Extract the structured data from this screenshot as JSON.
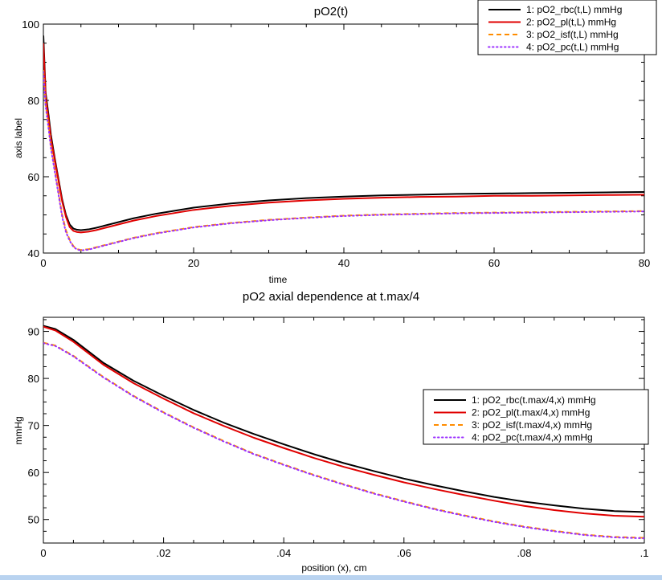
{
  "chart_data": [
    {
      "type": "line",
      "title": "pO2(t)",
      "xlabel": "time",
      "ylabel": "axis label",
      "xlim": [
        0,
        80
      ],
      "ylim": [
        40,
        100
      ],
      "xticks": [
        0,
        20,
        40,
        60,
        80
      ],
      "yticks": [
        40,
        60,
        80,
        100
      ],
      "xtick_labels": [
        "0",
        "20",
        "40",
        "60",
        "80"
      ],
      "ytick_labels": [
        "40",
        "60",
        "80",
        "100"
      ],
      "legend": "top-right",
      "grid": false,
      "series": [
        {
          "name": "1: pO2_rbc(t,L) mmHg",
          "color": "#000000",
          "dash": "solid",
          "x": [
            0,
            0.3,
            0.7,
            1,
            1.5,
            2,
            2.5,
            3,
            3.5,
            4,
            4.5,
            5,
            6,
            7,
            8,
            10,
            12,
            15,
            20,
            25,
            30,
            35,
            40,
            45,
            50,
            55,
            60,
            65,
            70,
            75,
            80
          ],
          "y": [
            97,
            82,
            76,
            71,
            65,
            59.5,
            54,
            50,
            47.5,
            46.4,
            46.1,
            46.0,
            46.2,
            46.6,
            47.1,
            48.1,
            49.1,
            50.3,
            51.9,
            53.0,
            53.8,
            54.4,
            54.8,
            55.1,
            55.3,
            55.5,
            55.6,
            55.7,
            55.8,
            55.9,
            56.0
          ]
        },
        {
          "name": "2: pO2_pl(t,L) mmHg",
          "color": "#e00000",
          "dash": "solid",
          "x": [
            0,
            0.3,
            0.7,
            1,
            1.5,
            2,
            2.5,
            3,
            3.5,
            4,
            4.5,
            5,
            6,
            7,
            8,
            10,
            12,
            15,
            20,
            25,
            30,
            35,
            40,
            45,
            50,
            55,
            60,
            65,
            70,
            75,
            80
          ],
          "y": [
            95,
            81,
            75,
            70,
            64.5,
            59,
            53.5,
            49.5,
            46.8,
            45.8,
            45.5,
            45.4,
            45.6,
            46.0,
            46.5,
            47.5,
            48.5,
            49.7,
            51.3,
            52.4,
            53.2,
            53.8,
            54.2,
            54.5,
            54.7,
            54.8,
            55.0,
            55.0,
            55.1,
            55.2,
            55.3
          ]
        },
        {
          "name": "3: pO2_isf(t,L) mmHg",
          "color": "#ff8c00",
          "dash": "dashed",
          "x": [
            0,
            0.3,
            0.7,
            1,
            1.5,
            2,
            2.5,
            3,
            3.5,
            4,
            4.5,
            5,
            6,
            7,
            8,
            10,
            12,
            15,
            20,
            25,
            30,
            35,
            40,
            45,
            50,
            55,
            60,
            65,
            70,
            75,
            80
          ],
          "y": [
            88,
            79,
            73,
            68,
            62,
            56,
            50,
            46,
            43.5,
            41.8,
            41.0,
            40.8,
            41.0,
            41.5,
            42.0,
            43.0,
            44.0,
            45.2,
            46.8,
            47.9,
            48.7,
            49.3,
            49.8,
            50.1,
            50.3,
            50.5,
            50.6,
            50.7,
            50.8,
            50.9,
            51.0
          ]
        },
        {
          "name": "4: pO2_pc(t,L) mmHg",
          "color": "#9b30ff",
          "dash": "dotted",
          "x": [
            0,
            0.3,
            0.7,
            1,
            1.5,
            2,
            2.5,
            3,
            3.5,
            4,
            4.5,
            5,
            6,
            7,
            8,
            10,
            12,
            15,
            20,
            25,
            30,
            35,
            40,
            45,
            50,
            55,
            60,
            65,
            70,
            75,
            80
          ],
          "y": [
            87.5,
            78.5,
            72.5,
            67.5,
            61.5,
            55.5,
            49.5,
            45.5,
            43.2,
            41.6,
            40.9,
            40.7,
            40.9,
            41.4,
            41.9,
            42.9,
            43.9,
            45.1,
            46.7,
            47.8,
            48.6,
            49.2,
            49.7,
            50.0,
            50.2,
            50.4,
            50.5,
            50.6,
            50.7,
            50.8,
            50.9
          ]
        }
      ]
    },
    {
      "type": "line",
      "title": "pO2 axial dependence at t.max/4",
      "xlabel": "position (x), cm",
      "ylabel": "mmHg",
      "xlim": [
        0,
        0.1
      ],
      "ylim": [
        45,
        93
      ],
      "xticks": [
        0,
        0.02,
        0.04,
        0.06,
        0.08,
        0.1
      ],
      "yticks": [
        50,
        60,
        70,
        80,
        90
      ],
      "xtick_labels": [
        "0",
        ".02",
        ".04",
        ".06",
        ".08",
        ".1"
      ],
      "ytick_labels": [
        "50",
        "60",
        "70",
        "80",
        "90"
      ],
      "legend": "right",
      "grid": false,
      "series": [
        {
          "name": "1: pO2_rbc(t.max/4,x) mmHg",
          "color": "#000000",
          "dash": "solid",
          "x": [
            0,
            0.002,
            0.005,
            0.01,
            0.015,
            0.02,
            0.025,
            0.03,
            0.035,
            0.04,
            0.045,
            0.05,
            0.055,
            0.06,
            0.065,
            0.07,
            0.075,
            0.08,
            0.085,
            0.09,
            0.095,
            0.1
          ],
          "y": [
            91.2,
            90.5,
            88.2,
            83.3,
            79.5,
            76.3,
            73.3,
            70.6,
            68.2,
            66.0,
            63.9,
            62.0,
            60.3,
            58.7,
            57.3,
            56.0,
            54.8,
            53.8,
            53.0,
            52.3,
            51.8,
            51.6
          ]
        },
        {
          "name": "2: pO2_pl(t.max/4,x) mmHg",
          "color": "#e00000",
          "dash": "solid",
          "x": [
            0,
            0.002,
            0.005,
            0.01,
            0.015,
            0.02,
            0.025,
            0.03,
            0.035,
            0.04,
            0.045,
            0.05,
            0.055,
            0.06,
            0.065,
            0.07,
            0.075,
            0.08,
            0.085,
            0.09,
            0.095,
            0.1
          ],
          "y": [
            91.0,
            90.2,
            87.8,
            82.9,
            79.0,
            75.7,
            72.6,
            69.9,
            67.4,
            65.2,
            63.1,
            61.2,
            59.5,
            57.9,
            56.5,
            55.2,
            54.0,
            52.9,
            52.0,
            51.3,
            50.8,
            50.6
          ]
        },
        {
          "name": "3: pO2_isf(t.max/4,x) mmHg",
          "color": "#ff8c00",
          "dash": "dashed",
          "x": [
            0,
            0.002,
            0.005,
            0.01,
            0.015,
            0.02,
            0.025,
            0.03,
            0.035,
            0.04,
            0.045,
            0.05,
            0.055,
            0.06,
            0.065,
            0.07,
            0.075,
            0.08,
            0.085,
            0.09,
            0.095,
            0.1
          ],
          "y": [
            87.6,
            87.0,
            84.8,
            80.3,
            76.3,
            72.8,
            69.6,
            66.7,
            64.0,
            61.7,
            59.5,
            57.5,
            55.6,
            53.9,
            52.3,
            50.9,
            49.6,
            48.5,
            47.6,
            46.8,
            46.3,
            46.1
          ]
        },
        {
          "name": "4: pO2_pc(t.max/4,x) mmHg",
          "color": "#9b30ff",
          "dash": "dotted",
          "x": [
            0,
            0.002,
            0.005,
            0.01,
            0.015,
            0.02,
            0.025,
            0.03,
            0.035,
            0.04,
            0.045,
            0.05,
            0.055,
            0.06,
            0.065,
            0.07,
            0.075,
            0.08,
            0.085,
            0.09,
            0.095,
            0.1
          ],
          "y": [
            87.5,
            86.9,
            84.7,
            80.2,
            76.2,
            72.7,
            69.5,
            66.6,
            63.9,
            61.6,
            59.4,
            57.4,
            55.5,
            53.8,
            52.2,
            50.8,
            49.5,
            48.4,
            47.5,
            46.7,
            46.2,
            46.0
          ]
        }
      ]
    }
  ]
}
